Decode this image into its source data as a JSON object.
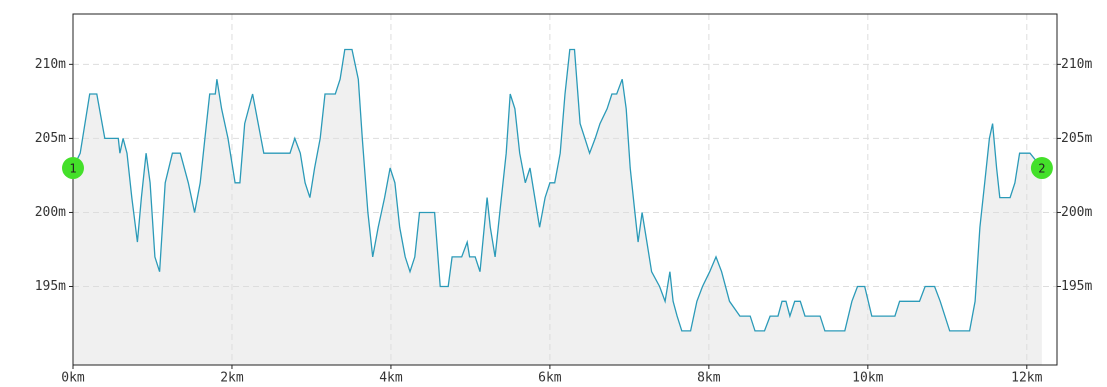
{
  "chart_data": {
    "type": "area",
    "x": [
      0,
      0.09,
      0.21,
      0.3,
      0.4,
      0.49,
      0.57,
      0.59,
      0.63,
      0.68,
      0.74,
      0.81,
      0.86,
      0.92,
      0.97,
      1.03,
      1.09,
      1.16,
      1.25,
      1.35,
      1.45,
      1.53,
      1.6,
      1.66,
      1.72,
      1.79,
      1.81,
      1.87,
      1.95,
      2.04,
      2.1,
      2.16,
      2.26,
      2.33,
      2.4,
      2.73,
      2.79,
      2.86,
      2.92,
      2.98,
      3.04,
      3.11,
      3.17,
      3.3,
      3.36,
      3.42,
      3.51,
      3.59,
      3.64,
      3.71,
      3.77,
      3.84,
      3.92,
      3.99,
      4.05,
      4.11,
      4.18,
      4.24,
      4.3,
      4.36,
      4.55,
      4.62,
      4.72,
      4.77,
      4.89,
      4.96,
      4.99,
      5.06,
      5.12,
      5.21,
      5.25,
      5.31,
      5.37,
      5.45,
      5.5,
      5.56,
      5.62,
      5.69,
      5.75,
      5.81,
      5.87,
      5.94,
      6.0,
      6.06,
      6.13,
      6.19,
      6.25,
      6.31,
      6.38,
      6.44,
      6.5,
      6.57,
      6.63,
      6.72,
      6.78,
      6.84,
      6.91,
      6.96,
      7.01,
      7.07,
      7.11,
      7.16,
      7.22,
      7.28,
      7.38,
      7.45,
      7.51,
      7.55,
      7.6,
      7.66,
      7.77,
      7.85,
      7.92,
      8.01,
      8.09,
      8.16,
      8.26,
      8.39,
      8.52,
      8.58,
      8.7,
      8.77,
      8.87,
      8.92,
      8.97,
      9.02,
      9.08,
      9.15,
      9.21,
      9.4,
      9.46,
      9.71,
      9.8,
      9.87,
      9.96,
      10.05,
      10.34,
      10.4,
      10.65,
      10.72,
      10.84,
      10.91,
      11.03,
      11.28,
      11.35,
      11.41,
      11.47,
      11.53,
      11.57,
      11.62,
      11.66,
      11.79,
      11.85,
      11.91,
      12.04,
      12.19
    ],
    "series": [
      {
        "color": "#2b9ab8",
        "fill": "#f0f0f0",
        "values": [
          203,
          204,
          208,
          208,
          205,
          205,
          205,
          204,
          205,
          204,
          201,
          198,
          201,
          204,
          202,
          197,
          196,
          202,
          204,
          204,
          202,
          200,
          202,
          205,
          208,
          208,
          209,
          207,
          205,
          202,
          202,
          206,
          208,
          206,
          204,
          204,
          205,
          204,
          202,
          201,
          203,
          205,
          208,
          208,
          209,
          211,
          211,
          209,
          205,
          200,
          197,
          199,
          201,
          203,
          202,
          199,
          197,
          196,
          197,
          200,
          200,
          195,
          195,
          197,
          197,
          198,
          197,
          197,
          196,
          201,
          199,
          197,
          200,
          204,
          208,
          207,
          204,
          202,
          203,
          201,
          199,
          201,
          202,
          202,
          204,
          208,
          211,
          211,
          206,
          205,
          204,
          205,
          206,
          207,
          208,
          208,
          209,
          207,
          203,
          200,
          198,
          200,
          198,
          196,
          195,
          194,
          196,
          194,
          193,
          192,
          192,
          194,
          195,
          196,
          197,
          196,
          194,
          193,
          193,
          192,
          192,
          193,
          193,
          194,
          194,
          193,
          194,
          194,
          193,
          193,
          192,
          192,
          194,
          195,
          195,
          193,
          193,
          194,
          194,
          195,
          195,
          194,
          192,
          192,
          194,
          199,
          202,
          205,
          206,
          203,
          201,
          201,
          202,
          204,
          204,
          203
        ]
      }
    ],
    "markers": [
      {
        "label": "1",
        "x": 0,
        "y": 203,
        "color": "#44e02a"
      },
      {
        "label": "2",
        "x": 12.19,
        "y": 203,
        "color": "#44e02a"
      }
    ],
    "xlim": [
      0,
      12.38
    ],
    "ylim": [
      189.7,
      213.4
    ],
    "xticks": [
      {
        "value": 0,
        "label": "0km"
      },
      {
        "value": 2,
        "label": "2km"
      },
      {
        "value": 4,
        "label": "4km"
      },
      {
        "value": 6,
        "label": "6km"
      },
      {
        "value": 8,
        "label": "8km"
      },
      {
        "value": 10,
        "label": "10km"
      },
      {
        "value": 12,
        "label": "12km"
      }
    ],
    "yticks": [
      {
        "value": 195,
        "label": "195m"
      },
      {
        "value": 200,
        "label": "200m"
      },
      {
        "value": 205,
        "label": "205m"
      },
      {
        "value": 210,
        "label": "210m"
      }
    ],
    "grid": true,
    "right_axis_labels": true
  }
}
